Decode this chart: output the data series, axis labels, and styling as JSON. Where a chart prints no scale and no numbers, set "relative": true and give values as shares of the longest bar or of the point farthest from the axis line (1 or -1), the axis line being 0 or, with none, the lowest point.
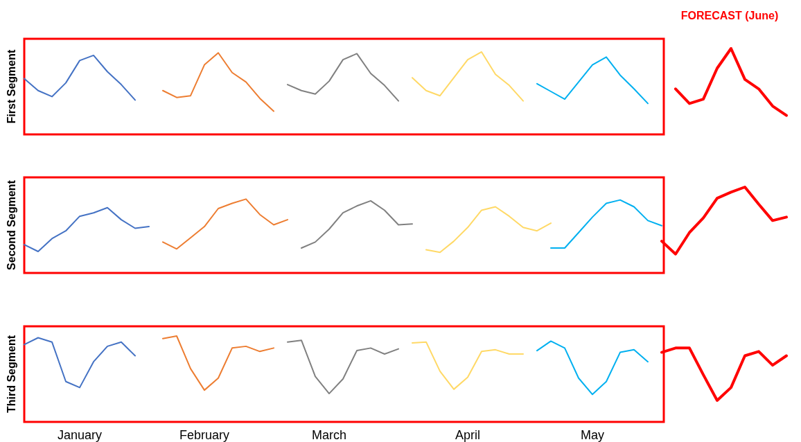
{
  "chart_data": [
    {
      "type": "line",
      "relative": true,
      "ylabel": "First Segment",
      "annotations": [
        "FORECAST (June)"
      ],
      "categories": [
        null,
        null,
        null,
        null,
        null,
        null,
        null,
        null,
        null,
        null,
        null,
        null,
        null,
        null,
        null,
        null,
        null,
        null,
        null,
        null,
        null,
        null,
        null,
        null,
        null,
        null,
        null,
        null,
        null,
        null,
        null,
        null,
        null,
        null,
        null,
        null,
        null,
        null,
        null,
        null,
        null,
        null,
        null,
        null,
        null,
        null,
        null,
        null,
        null,
        null,
        null,
        null,
        null,
        null,
        null,
        null
      ],
      "series": [
        {
          "color": "#4472c4",
          "values": [
            0.65,
            0.51,
            0.44,
            0.6,
            0.86,
            0.92,
            0.73,
            0.58,
            0.4,
            null,
            null,
            null,
            null,
            null,
            null,
            null,
            null,
            null,
            null,
            null,
            null,
            null,
            null,
            null,
            null,
            null,
            null,
            null,
            null,
            null,
            null,
            null,
            null,
            null,
            null,
            null,
            null,
            null,
            null,
            null,
            null,
            null,
            null,
            null,
            null,
            null,
            null,
            null,
            null,
            null,
            null,
            null,
            null,
            null,
            null,
            null
          ]
        },
        {
          "color": "#ed7d31",
          "values": [
            null,
            null,
            null,
            null,
            null,
            null,
            null,
            null,
            null,
            null,
            0.51,
            0.43,
            0.45,
            0.81,
            0.95,
            0.72,
            0.61,
            0.42,
            0.27,
            null,
            null,
            null,
            null,
            null,
            null,
            null,
            null,
            null,
            null,
            null,
            null,
            null,
            null,
            null,
            null,
            null,
            null,
            null,
            null,
            null,
            null,
            null,
            null,
            null,
            null,
            null,
            null,
            null,
            null,
            null,
            null,
            null,
            null,
            null,
            null,
            null
          ]
        },
        {
          "color": "#808080",
          "values": [
            null,
            null,
            null,
            null,
            null,
            null,
            null,
            null,
            null,
            null,
            null,
            null,
            null,
            null,
            null,
            null,
            null,
            null,
            null,
            0.58,
            0.51,
            0.47,
            0.62,
            0.87,
            0.94,
            0.71,
            0.57,
            0.39,
            null,
            null,
            null,
            null,
            null,
            null,
            null,
            null,
            null,
            null,
            null,
            null,
            null,
            null,
            null,
            null,
            null,
            null,
            null,
            null,
            null,
            null,
            null,
            null,
            null,
            null,
            null,
            null
          ]
        },
        {
          "color": "#ffd966",
          "values": [
            null,
            null,
            null,
            null,
            null,
            null,
            null,
            null,
            null,
            null,
            null,
            null,
            null,
            null,
            null,
            null,
            null,
            null,
            null,
            null,
            null,
            null,
            null,
            null,
            null,
            null,
            null,
            null,
            0.66,
            0.51,
            0.45,
            0.66,
            0.87,
            0.96,
            0.7,
            0.57,
            0.39,
            null,
            null,
            null,
            null,
            null,
            null,
            null,
            null,
            null,
            null,
            null,
            null,
            null,
            null,
            null,
            null,
            null,
            null,
            null
          ]
        },
        {
          "color": "#00b0f0",
          "values": [
            null,
            null,
            null,
            null,
            null,
            null,
            null,
            null,
            null,
            null,
            null,
            null,
            null,
            null,
            null,
            null,
            null,
            null,
            null,
            null,
            null,
            null,
            null,
            null,
            null,
            null,
            null,
            null,
            null,
            null,
            null,
            null,
            null,
            null,
            null,
            null,
            null,
            0.59,
            0.5,
            0.41,
            0.61,
            0.81,
            0.9,
            0.69,
            0.53,
            0.36,
            null,
            null,
            null,
            null,
            null,
            null,
            null,
            null,
            null,
            null
          ]
        },
        {
          "color": "#ff0000",
          "values": [
            null,
            null,
            null,
            null,
            null,
            null,
            null,
            null,
            null,
            null,
            null,
            null,
            null,
            null,
            null,
            null,
            null,
            null,
            null,
            null,
            null,
            null,
            null,
            null,
            null,
            null,
            null,
            null,
            null,
            null,
            null,
            null,
            null,
            null,
            null,
            null,
            null,
            null,
            null,
            null,
            null,
            null,
            null,
            null,
            null,
            null,
            null,
            0.53,
            0.36,
            0.41,
            0.77,
            1.0,
            0.64,
            0.53,
            0.33,
            0.22
          ]
        }
      ]
    },
    {
      "type": "line",
      "relative": true,
      "ylabel": "Second Segment",
      "categories": [
        null,
        null,
        null,
        null,
        null,
        null,
        null,
        null,
        null,
        null,
        null,
        null,
        null,
        null,
        null,
        null,
        null,
        null,
        null,
        null,
        null,
        null,
        null,
        null,
        null,
        null,
        null,
        null,
        null,
        null,
        null,
        null,
        null,
        null,
        null,
        null,
        null,
        null,
        null,
        null,
        null,
        null,
        null,
        null,
        null,
        null,
        null,
        null,
        null,
        null,
        null,
        null,
        null,
        null,
        null,
        null
      ],
      "series": [
        {
          "color": "#4472c4",
          "values": [
            0.33,
            0.25,
            0.4,
            0.49,
            0.66,
            0.7,
            0.76,
            0.62,
            0.52,
            0.54,
            null,
            null,
            null,
            null,
            null,
            null,
            null,
            null,
            null,
            null,
            null,
            null,
            null,
            null,
            null,
            null,
            null,
            null,
            null,
            null,
            null,
            null,
            null,
            null,
            null,
            null,
            null,
            null,
            null,
            null,
            null,
            null,
            null,
            null,
            null,
            null,
            null,
            null,
            null,
            null,
            null,
            null,
            null,
            null,
            null,
            null
          ]
        },
        {
          "color": "#ed7d31",
          "values": [
            null,
            null,
            null,
            null,
            null,
            null,
            null,
            null,
            null,
            null,
            0.36,
            0.28,
            0.41,
            0.54,
            0.75,
            0.81,
            0.86,
            0.68,
            0.56,
            0.62,
            null,
            null,
            null,
            null,
            null,
            null,
            null,
            null,
            null,
            null,
            null,
            null,
            null,
            null,
            null,
            null,
            null,
            null,
            null,
            null,
            null,
            null,
            null,
            null,
            null,
            null,
            null,
            null,
            null,
            null,
            null,
            null,
            null,
            null,
            null,
            null
          ]
        },
        {
          "color": "#808080",
          "values": [
            null,
            null,
            null,
            null,
            null,
            null,
            null,
            null,
            null,
            null,
            null,
            null,
            null,
            null,
            null,
            null,
            null,
            null,
            null,
            null,
            0.29,
            0.36,
            0.51,
            0.7,
            0.78,
            0.84,
            0.73,
            0.56,
            0.57,
            null,
            null,
            null,
            null,
            null,
            null,
            null,
            null,
            null,
            null,
            null,
            null,
            null,
            null,
            null,
            null,
            null,
            null,
            null,
            null,
            null,
            null,
            null,
            null,
            null,
            null,
            null
          ]
        },
        {
          "color": "#ffd966",
          "values": [
            null,
            null,
            null,
            null,
            null,
            null,
            null,
            null,
            null,
            null,
            null,
            null,
            null,
            null,
            null,
            null,
            null,
            null,
            null,
            null,
            null,
            null,
            null,
            null,
            null,
            null,
            null,
            null,
            null,
            0.27,
            0.24,
            0.37,
            0.53,
            0.73,
            0.77,
            0.66,
            0.53,
            0.49,
            0.58,
            null,
            null,
            null,
            null,
            null,
            null,
            null,
            null,
            null,
            null,
            null,
            null,
            null,
            null,
            null,
            null,
            null
          ]
        },
        {
          "color": "#00b0f0",
          "values": [
            null,
            null,
            null,
            null,
            null,
            null,
            null,
            null,
            null,
            null,
            null,
            null,
            null,
            null,
            null,
            null,
            null,
            null,
            null,
            null,
            null,
            null,
            null,
            null,
            null,
            null,
            null,
            null,
            null,
            null,
            null,
            null,
            null,
            null,
            null,
            null,
            null,
            null,
            0.29,
            0.29,
            0.47,
            0.65,
            0.81,
            0.85,
            0.77,
            0.61,
            0.55,
            null,
            null,
            null,
            null,
            null,
            null,
            null,
            null,
            null
          ]
        },
        {
          "color": "#ff0000",
          "values": [
            null,
            null,
            null,
            null,
            null,
            null,
            null,
            null,
            null,
            null,
            null,
            null,
            null,
            null,
            null,
            null,
            null,
            null,
            null,
            null,
            null,
            null,
            null,
            null,
            null,
            null,
            null,
            null,
            null,
            null,
            null,
            null,
            null,
            null,
            null,
            null,
            null,
            null,
            null,
            null,
            null,
            null,
            null,
            null,
            null,
            null,
            0.37,
            0.22,
            0.47,
            0.64,
            0.87,
            0.94,
            1.0,
            0.8,
            0.61,
            0.65
          ]
        }
      ]
    },
    {
      "type": "line",
      "relative": true,
      "ylabel": "Third Segment",
      "categories": [
        null,
        null,
        null,
        null,
        "January",
        null,
        null,
        null,
        null,
        null,
        null,
        null,
        null,
        "February",
        null,
        null,
        null,
        null,
        null,
        null,
        null,
        null,
        "March",
        null,
        null,
        null,
        null,
        null,
        null,
        null,
        null,
        null,
        "April",
        null,
        null,
        null,
        null,
        null,
        null,
        null,
        null,
        "May",
        null,
        null,
        null,
        null,
        null,
        null,
        null,
        null,
        null,
        null,
        null,
        null,
        null,
        null
      ],
      "series": [
        {
          "color": "#4472c4",
          "values": [
            0.9,
            0.98,
            0.93,
            0.47,
            0.4,
            0.7,
            0.88,
            0.93,
            0.77,
            null,
            null,
            null,
            null,
            null,
            null,
            null,
            null,
            null,
            null,
            null,
            null,
            null,
            null,
            null,
            null,
            null,
            null,
            null,
            null,
            null,
            null,
            null,
            null,
            null,
            null,
            null,
            null,
            null,
            null,
            null,
            null,
            null,
            null,
            null,
            null,
            null,
            null,
            null,
            null,
            null,
            null,
            null,
            null,
            null,
            null,
            null
          ]
        },
        {
          "color": "#ed7d31",
          "values": [
            null,
            null,
            null,
            null,
            null,
            null,
            null,
            null,
            null,
            null,
            0.97,
            1.0,
            0.62,
            0.37,
            0.51,
            0.86,
            0.88,
            0.82,
            0.86,
            null,
            null,
            null,
            null,
            null,
            null,
            null,
            null,
            null,
            null,
            null,
            null,
            null,
            null,
            null,
            null,
            null,
            null,
            null,
            null,
            null,
            null,
            null,
            null,
            null,
            null,
            null,
            null,
            null,
            null,
            null,
            null,
            null,
            null,
            null,
            null,
            null
          ]
        },
        {
          "color": "#808080",
          "values": [
            null,
            null,
            null,
            null,
            null,
            null,
            null,
            null,
            null,
            null,
            null,
            null,
            null,
            null,
            null,
            null,
            null,
            null,
            null,
            0.93,
            0.95,
            0.53,
            0.33,
            0.5,
            0.83,
            0.86,
            0.79,
            0.85,
            null,
            null,
            null,
            null,
            null,
            null,
            null,
            null,
            null,
            null,
            null,
            null,
            null,
            null,
            null,
            null,
            null,
            null,
            null,
            null,
            null,
            null,
            null,
            null,
            null,
            null,
            null,
            null
          ]
        },
        {
          "color": "#ffd966",
          "values": [
            null,
            null,
            null,
            null,
            null,
            null,
            null,
            null,
            null,
            null,
            null,
            null,
            null,
            null,
            null,
            null,
            null,
            null,
            null,
            null,
            null,
            null,
            null,
            null,
            null,
            null,
            null,
            null,
            0.92,
            0.93,
            0.59,
            0.38,
            0.52,
            0.82,
            0.84,
            0.79,
            0.79,
            null,
            null,
            null,
            null,
            null,
            null,
            null,
            null,
            null,
            null,
            null,
            null,
            null,
            null,
            null,
            null,
            null,
            null,
            null
          ]
        },
        {
          "color": "#00b0f0",
          "values": [
            null,
            null,
            null,
            null,
            null,
            null,
            null,
            null,
            null,
            null,
            null,
            null,
            null,
            null,
            null,
            null,
            null,
            null,
            null,
            null,
            null,
            null,
            null,
            null,
            null,
            null,
            null,
            null,
            null,
            null,
            null,
            null,
            null,
            null,
            null,
            null,
            null,
            0.83,
            0.94,
            0.86,
            0.51,
            0.32,
            0.47,
            0.81,
            0.84,
            0.7,
            null,
            null,
            null,
            null,
            null,
            null,
            null,
            null,
            null,
            null
          ]
        },
        {
          "color": "#ff0000",
          "values": [
            null,
            null,
            null,
            null,
            null,
            null,
            null,
            null,
            null,
            null,
            null,
            null,
            null,
            null,
            null,
            null,
            null,
            null,
            null,
            null,
            null,
            null,
            null,
            null,
            null,
            null,
            null,
            null,
            null,
            null,
            null,
            null,
            null,
            null,
            null,
            null,
            null,
            null,
            null,
            null,
            null,
            null,
            null,
            null,
            null,
            null,
            0.81,
            0.86,
            0.86,
            0.55,
            0.25,
            0.4,
            0.77,
            0.82,
            0.66,
            0.77
          ]
        }
      ]
    }
  ]
}
